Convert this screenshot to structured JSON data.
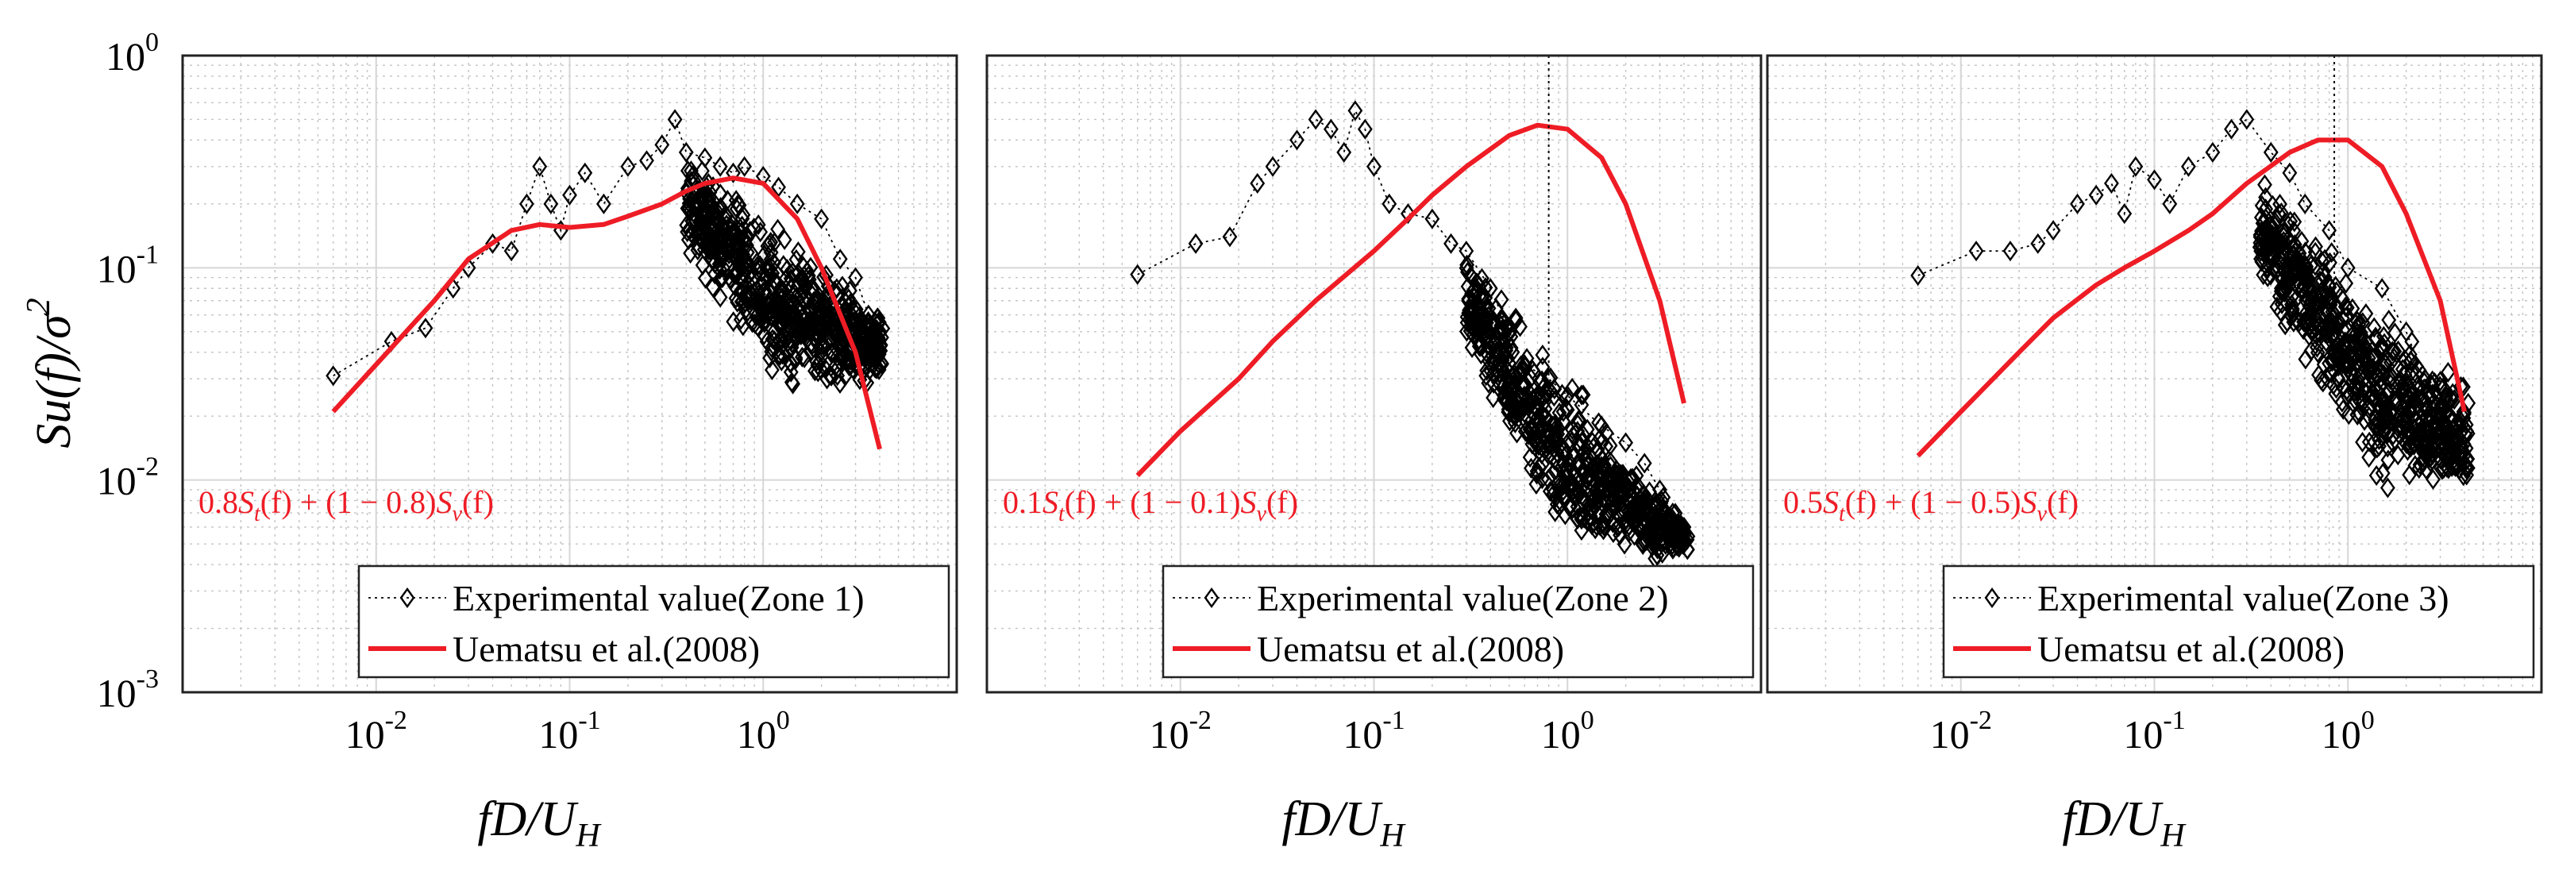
{
  "figure": {
    "y_label_main": "Su(f)/σ",
    "y_label_sup": "2",
    "y_label_sub_char": "u",
    "x_label_main": "fD/U",
    "x_label_sub": "H"
  },
  "colors": {
    "model": "#ee1c25",
    "experimental": "#000000",
    "grid": "#d6d6d6"
  },
  "axes": {
    "x_scale": "log",
    "y_scale": "log",
    "xlim": [
      0.001,
      10
    ],
    "ylim": [
      0.001,
      1
    ],
    "y_ticks": [
      {
        "base": "10",
        "exp": "0"
      },
      {
        "base": "10",
        "exp": "-1"
      },
      {
        "base": "10",
        "exp": "-2"
      },
      {
        "base": "10",
        "exp": "-3"
      }
    ],
    "x_ticks": [
      {
        "base": "10",
        "exp": "-2"
      },
      {
        "base": "10",
        "exp": "-1"
      },
      {
        "base": "10",
        "exp": "0"
      }
    ]
  },
  "chart_data": [
    {
      "type": "line",
      "panel": "Zone 1",
      "title": "",
      "xlabel": "fD/UH",
      "ylabel": "Su(f)/σ^2",
      "xlim": [
        0.001,
        10
      ],
      "ylim": [
        0.001,
        1
      ],
      "grid": true,
      "legend_position": "bottom-right",
      "equation": {
        "coef": "0.8",
        "mid": "(f) + (1 − 0.8)",
        "tail": "(f)"
      },
      "peak_x": null,
      "series": [
        {
          "name": "Experimental value(Zone 1)",
          "style": "scatter-dotted",
          "marker": "diamond",
          "x": [
            0.006,
            0.012,
            0.018,
            0.025,
            0.03,
            0.04,
            0.05,
            0.06,
            0.07,
            0.08,
            0.09,
            0.1,
            0.12,
            0.15,
            0.2,
            0.25,
            0.3,
            0.35,
            0.4,
            0.5,
            0.6,
            0.7,
            0.8,
            1.0,
            1.2,
            1.5,
            2.0,
            2.5,
            3.0,
            3.5,
            4.0
          ],
          "values": [
            0.031,
            0.045,
            0.052,
            0.08,
            0.1,
            0.13,
            0.12,
            0.2,
            0.3,
            0.2,
            0.15,
            0.22,
            0.28,
            0.2,
            0.3,
            0.32,
            0.38,
            0.5,
            0.35,
            0.33,
            0.3,
            0.28,
            0.3,
            0.27,
            0.24,
            0.2,
            0.17,
            0.11,
            0.09,
            0.06,
            0.05
          ],
          "cloud": {
            "x_range": [
              0.4,
              4.2
            ],
            "upper": 0.4,
            "lower": 0.025,
            "slope": -0.9
          }
        },
        {
          "name": "Uematsu et al.(2008)",
          "style": "line",
          "x": [
            0.006,
            0.01,
            0.02,
            0.03,
            0.05,
            0.07,
            0.1,
            0.15,
            0.2,
            0.3,
            0.4,
            0.5,
            0.7,
            1.0,
            1.5,
            2.0,
            3.0,
            4.0
          ],
          "values": [
            0.021,
            0.035,
            0.07,
            0.11,
            0.15,
            0.16,
            0.155,
            0.16,
            0.175,
            0.2,
            0.23,
            0.25,
            0.265,
            0.25,
            0.17,
            0.1,
            0.04,
            0.014
          ]
        }
      ]
    },
    {
      "type": "line",
      "panel": "Zone 2",
      "title": "",
      "xlabel": "fD/UH",
      "ylabel": "Su(f)/σ^2",
      "xlim": [
        0.001,
        10
      ],
      "ylim": [
        0.001,
        1
      ],
      "grid": true,
      "legend_position": "bottom-right",
      "equation": {
        "coef": "0.1",
        "mid": "(f) + (1 − 0.1)",
        "tail": "(f)"
      },
      "peak_x": 0.8,
      "series": [
        {
          "name": "Experimental value(Zone 2)",
          "style": "scatter-dotted",
          "marker": "diamond",
          "x": [
            0.006,
            0.012,
            0.018,
            0.025,
            0.03,
            0.04,
            0.05,
            0.06,
            0.07,
            0.08,
            0.09,
            0.1,
            0.12,
            0.15,
            0.2,
            0.25,
            0.3,
            0.4,
            0.5,
            0.6,
            0.8,
            1.0,
            1.5,
            2.0,
            2.5,
            3.0,
            3.5,
            4.0
          ],
          "values": [
            0.093,
            0.13,
            0.14,
            0.25,
            0.3,
            0.4,
            0.5,
            0.45,
            0.35,
            0.55,
            0.45,
            0.3,
            0.2,
            0.18,
            0.17,
            0.13,
            0.12,
            0.08,
            0.05,
            0.035,
            0.03,
            0.025,
            0.018,
            0.015,
            0.012,
            0.009,
            0.007,
            0.006
          ],
          "cloud": {
            "x_range": [
              0.3,
              4.2
            ],
            "upper": 0.15,
            "lower": 0.004,
            "slope": -1.4
          }
        },
        {
          "name": "Uematsu et al.(2008)",
          "style": "line",
          "x": [
            0.006,
            0.01,
            0.02,
            0.03,
            0.05,
            0.1,
            0.15,
            0.2,
            0.3,
            0.5,
            0.7,
            1.0,
            1.5,
            2.0,
            3.0,
            4.0
          ],
          "values": [
            0.0105,
            0.017,
            0.03,
            0.045,
            0.07,
            0.12,
            0.17,
            0.22,
            0.3,
            0.42,
            0.47,
            0.45,
            0.33,
            0.2,
            0.07,
            0.023
          ]
        }
      ]
    },
    {
      "type": "line",
      "panel": "Zone 3",
      "title": "",
      "xlabel": "fD/UH",
      "ylabel": "Su(f)/σ^2",
      "xlim": [
        0.001,
        10
      ],
      "ylim": [
        0.001,
        1
      ],
      "grid": true,
      "legend_position": "bottom-right",
      "equation": {
        "coef": "0.5",
        "mid": "(f) + (1 − 0.5)",
        "tail": "(f)"
      },
      "peak_x": 0.85,
      "series": [
        {
          "name": "Experimental value(Zone 3)",
          "style": "scatter-dotted",
          "marker": "diamond",
          "x": [
            0.006,
            0.012,
            0.018,
            0.025,
            0.03,
            0.04,
            0.05,
            0.06,
            0.07,
            0.08,
            0.1,
            0.12,
            0.15,
            0.2,
            0.25,
            0.3,
            0.4,
            0.5,
            0.6,
            0.8,
            1.0,
            1.5,
            2.0,
            2.5,
            3.0,
            3.5,
            4.0
          ],
          "values": [
            0.092,
            0.12,
            0.12,
            0.13,
            0.15,
            0.2,
            0.22,
            0.25,
            0.18,
            0.3,
            0.26,
            0.2,
            0.3,
            0.35,
            0.45,
            0.5,
            0.35,
            0.28,
            0.2,
            0.15,
            0.1,
            0.08,
            0.05,
            0.03,
            0.02,
            0.015,
            0.012
          ],
          "cloud": {
            "x_range": [
              0.35,
              4.2
            ],
            "upper": 0.3,
            "lower": 0.008,
            "slope": -1.1
          }
        },
        {
          "name": "Uematsu et al.(2008)",
          "style": "line",
          "x": [
            0.006,
            0.01,
            0.02,
            0.03,
            0.05,
            0.07,
            0.1,
            0.15,
            0.2,
            0.3,
            0.5,
            0.7,
            1.0,
            1.5,
            2.0,
            3.0,
            4.0
          ],
          "values": [
            0.013,
            0.021,
            0.04,
            0.058,
            0.083,
            0.1,
            0.12,
            0.15,
            0.18,
            0.25,
            0.35,
            0.4,
            0.4,
            0.3,
            0.18,
            0.07,
            0.021
          ]
        }
      ]
    }
  ]
}
